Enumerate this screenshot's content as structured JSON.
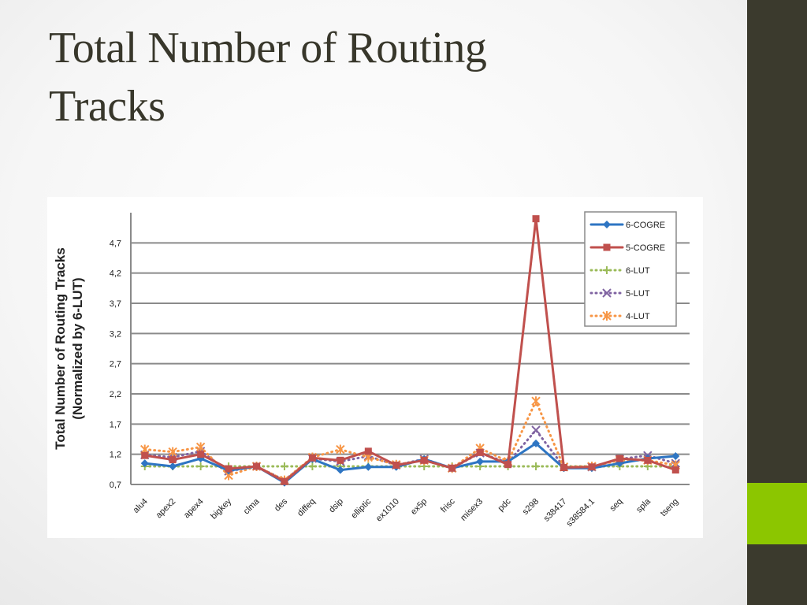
{
  "slide": {
    "title_line1": "Total Number of Routing",
    "title_line2": "Tracks"
  },
  "colors": {
    "side_bar": "#3b3a2d",
    "accent": "#8cc600",
    "title_text": "#38372b"
  },
  "chart_data": {
    "type": "line",
    "title": "",
    "xlabel": "",
    "ylabel_line1": "Total Number of Routing Tracks",
    "ylabel_line2": "(Normalized by 6-LUT)",
    "ylim": [
      0.7,
      5.2
    ],
    "y_ticks": [
      "0,7",
      "1,2",
      "1,7",
      "2,2",
      "2,7",
      "3,2",
      "3,7",
      "4,2",
      "4,7"
    ],
    "y_tick_values": [
      0.7,
      1.2,
      1.7,
      2.2,
      2.7,
      3.2,
      3.7,
      4.2,
      4.7
    ],
    "grid": true,
    "legend_position": "top-right",
    "categories": [
      "alu4",
      "apex2",
      "apex4",
      "bigkey",
      "clma",
      "des",
      "diffeq",
      "dsip",
      "elliptic",
      "ex1010",
      "ex5p",
      "frisc",
      "misex3",
      "pdc",
      "s298",
      "s38417",
      "s38584.1",
      "seq",
      "spla",
      "tseng"
    ],
    "series": [
      {
        "name": "6-COGRE",
        "color": "#2e75c3",
        "dash": "solid",
        "marker": "diamond",
        "values": [
          1.05,
          1.0,
          1.13,
          0.93,
          1.0,
          0.73,
          1.12,
          0.94,
          0.99,
          0.99,
          1.12,
          0.97,
          1.08,
          1.08,
          1.38,
          0.97,
          0.97,
          1.05,
          1.13,
          1.17
        ]
      },
      {
        "name": "5-COGRE",
        "color": "#c0504d",
        "dash": "solid",
        "marker": "square",
        "values": [
          1.18,
          1.11,
          1.2,
          0.96,
          1.0,
          0.75,
          1.14,
          1.1,
          1.25,
          1.02,
          1.1,
          0.97,
          1.23,
          1.03,
          5.1,
          0.98,
          0.99,
          1.13,
          1.1,
          0.94
        ]
      },
      {
        "name": "6-LUT",
        "color": "#9bbb59",
        "dash": "dotted",
        "marker": "plus",
        "values": [
          1.0,
          1.0,
          1.0,
          1.0,
          1.0,
          1.0,
          1.0,
          1.0,
          1.0,
          1.0,
          1.0,
          1.0,
          1.0,
          1.0,
          1.0,
          1.0,
          1.0,
          1.0,
          1.0,
          1.0
        ]
      },
      {
        "name": "5-LUT",
        "color": "#8064a2",
        "dash": "dotted",
        "marker": "x",
        "values": [
          1.19,
          1.15,
          1.25,
          0.92,
          1.0,
          0.77,
          1.13,
          1.08,
          1.17,
          1.02,
          1.12,
          0.97,
          1.22,
          1.06,
          1.6,
          0.99,
          0.99,
          1.12,
          1.18,
          1.05
        ]
      },
      {
        "name": "4-LUT",
        "color": "#f79646",
        "dash": "dotted",
        "marker": "asterisk",
        "values": [
          1.28,
          1.24,
          1.32,
          0.85,
          1.0,
          0.77,
          1.15,
          1.28,
          1.15,
          1.03,
          1.1,
          0.97,
          1.3,
          1.08,
          2.08,
          0.99,
          1.0,
          1.1,
          1.1,
          1.02
        ]
      }
    ]
  }
}
